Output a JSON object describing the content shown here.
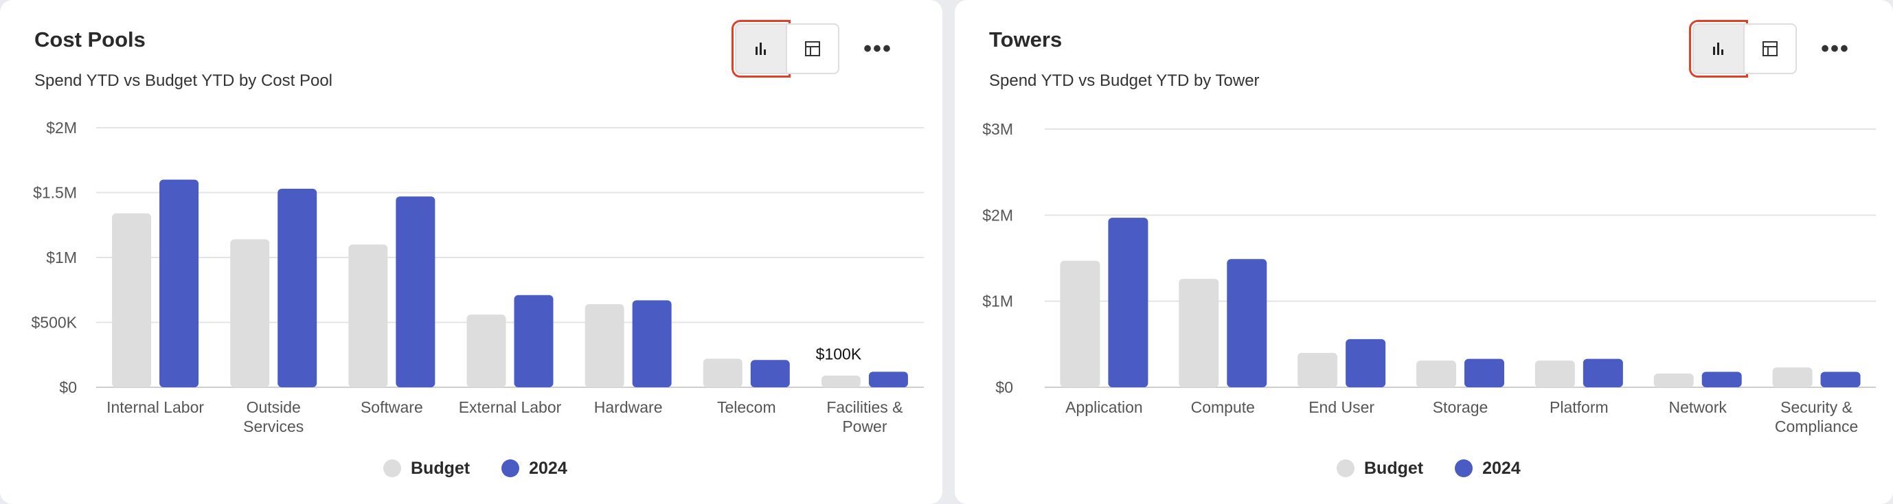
{
  "colors": {
    "budget": "#dddddd",
    "actual": "#4a5bc4",
    "grid": "#e4e4e4",
    "axis_text": "#555555",
    "highlight": "#e0402a"
  },
  "icons": {
    "chart_view": "bar-chart-icon",
    "table_view": "table-icon",
    "more": "more-horizontal-icon"
  },
  "left_card": {
    "title": "Cost Pools",
    "subtitle": "Spend YTD vs Budget YTD by Cost Pool",
    "more_label": "•••",
    "legend": {
      "budget": "Budget",
      "actual": "2024"
    }
  },
  "right_card": {
    "title": "Towers",
    "subtitle": "Spend YTD vs Budget YTD by Tower",
    "more_label": "•••",
    "legend": {
      "budget": "Budget",
      "actual": "2024"
    }
  },
  "chart_data": [
    {
      "type": "bar",
      "title": "Cost Pools",
      "subtitle": "Spend YTD vs Budget YTD by Cost Pool",
      "categories": [
        "Internal Labor",
        "Outside Services",
        "Software",
        "External Labor",
        "Hardware",
        "Telecom",
        "Facilities & Power"
      ],
      "category_lines": [
        [
          "Internal Labor"
        ],
        [
          "Outside",
          "Services"
        ],
        [
          "Software"
        ],
        [
          "External Labor"
        ],
        [
          "Hardware"
        ],
        [
          "Telecom"
        ],
        [
          "Facilities &",
          "Power"
        ]
      ],
      "series": [
        {
          "name": "Budget",
          "values": [
            1340000,
            1140000,
            1100000,
            560000,
            640000,
            220000,
            90000
          ]
        },
        {
          "name": "2024",
          "values": [
            1600000,
            1530000,
            1470000,
            710000,
            670000,
            210000,
            120000
          ]
        }
      ],
      "ylim": [
        0,
        2000000
      ],
      "yticks": [
        0,
        500000,
        1000000,
        1500000,
        2000000
      ],
      "ytick_labels": [
        "$0",
        "$500K",
        "$1M",
        "$1.5M",
        "$2M"
      ],
      "annotations": [
        {
          "category": "Facilities & Power",
          "text": "$100K"
        }
      ],
      "grid": true,
      "legend": "bottom-center"
    },
    {
      "type": "bar",
      "title": "Towers",
      "subtitle": "Spend YTD vs Budget YTD by Tower",
      "categories": [
        "Application",
        "Compute",
        "End User",
        "Storage",
        "Platform",
        "Network",
        "Security & Compliance"
      ],
      "category_lines": [
        [
          "Application"
        ],
        [
          "Compute"
        ],
        [
          "End User"
        ],
        [
          "Storage"
        ],
        [
          "Platform"
        ],
        [
          "Network"
        ],
        [
          "Security &",
          "Compliance"
        ]
      ],
      "series": [
        {
          "name": "Budget",
          "values": [
            1470000,
            1260000,
            400000,
            310000,
            310000,
            160000,
            230000
          ]
        },
        {
          "name": "2024",
          "values": [
            1970000,
            1490000,
            560000,
            330000,
            330000,
            180000,
            180000
          ]
        }
      ],
      "ylim": [
        0,
        3000000
      ],
      "yticks": [
        0,
        1000000,
        2000000,
        3000000
      ],
      "ytick_labels": [
        "$0",
        "$1M",
        "$2M",
        "$3M"
      ],
      "annotations": [],
      "grid": true,
      "legend": "bottom-center"
    }
  ]
}
